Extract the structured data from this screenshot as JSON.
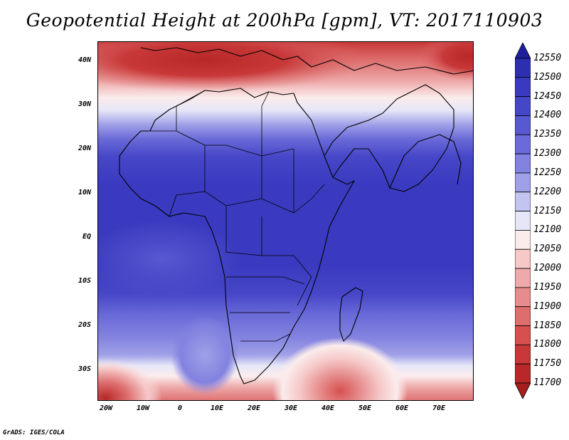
{
  "title": "Geopotential Height at 200hPa [gpm], VT: 2017110903",
  "footer": "GrADS: IGES/COLA",
  "lat_labels": [
    "40N",
    "30N",
    "20N",
    "10N",
    "EQ",
    "10S",
    "20S",
    "30S"
  ],
  "lon_labels": [
    "20W",
    "10W",
    "0",
    "10E",
    "20E",
    "30E",
    "40E",
    "50E",
    "60E",
    "70E"
  ],
  "colorbar": {
    "levels": [
      "12550",
      "12500",
      "12450",
      "12400",
      "12350",
      "12300",
      "12250",
      "12200",
      "12150",
      "12100",
      "12050",
      "12000",
      "11950",
      "11900",
      "11850",
      "11800",
      "11750",
      "11700"
    ],
    "colors": [
      "#1e1e9e",
      "#2e2eb0",
      "#3a3ac0",
      "#4646c8",
      "#5858d0",
      "#6a6ad8",
      "#8282e0",
      "#a0a0e8",
      "#c4c4f0",
      "#e6e6f8",
      "#fbecec",
      "#f6c8c8",
      "#eeaaaa",
      "#e68c8c",
      "#de6e6e",
      "#d65050",
      "#c83838",
      "#b82828",
      "#a41e1e"
    ]
  },
  "chart_data": {
    "type": "heatmap",
    "title": "Geopotential Height at 200hPa [gpm], VT: 2017110903",
    "variable": "Geopotential Height",
    "level": "200hPa",
    "units": "gpm",
    "valid_time": "2017110903",
    "lon_range": [
      -22,
      80
    ],
    "lat_range": [
      -37,
      45
    ],
    "contour_levels": [
      11700,
      11750,
      11800,
      11850,
      11900,
      11950,
      12000,
      12050,
      12100,
      12150,
      12200,
      12250,
      12300,
      12350,
      12400,
      12450,
      12500,
      12550
    ],
    "features": [
      {
        "name": "tropical high belt",
        "approx_value": 12450,
        "lat": 5
      },
      {
        "name": "Mediterranean trough",
        "approx_value": 11800,
        "lat": 42,
        "lon": 20
      },
      {
        "name": "southern Indian Ocean low",
        "approx_value": 11800,
        "lat": -35,
        "lon": 42
      },
      {
        "name": "South Atlantic low",
        "approx_value": 11750,
        "lat": -37,
        "lon": -20
      }
    ]
  }
}
